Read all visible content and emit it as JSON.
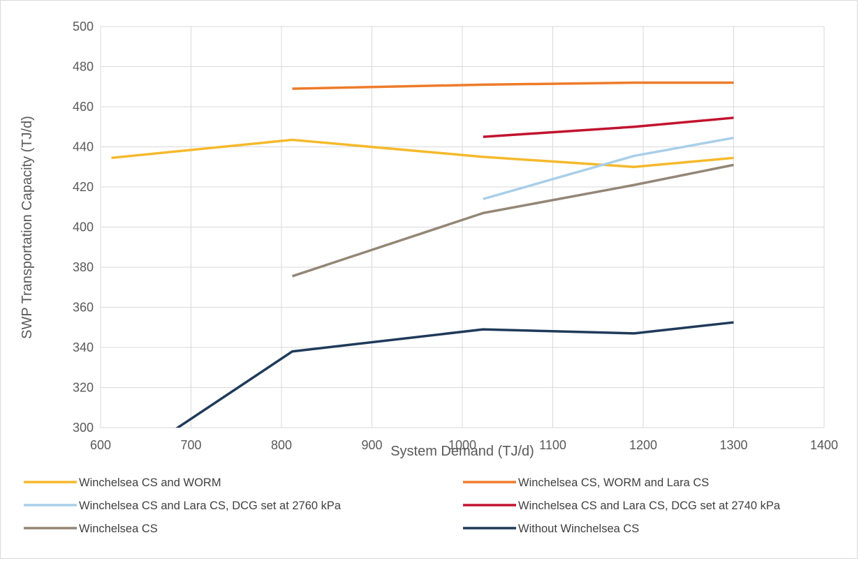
{
  "chart_data": {
    "type": "line",
    "title": "",
    "xlabel": "System Demand (TJ/d)",
    "ylabel": "SWP Transportation Capacity (TJ/d)",
    "xlim": [
      600,
      1400
    ],
    "ylim": [
      300,
      500
    ],
    "xticks": [
      600,
      700,
      800,
      900,
      1000,
      1100,
      1200,
      1300,
      1400
    ],
    "yticks": [
      300,
      320,
      340,
      360,
      380,
      400,
      420,
      440,
      460,
      480,
      500
    ],
    "grid": "horizontal and vertical",
    "legend_position": "bottom",
    "series": [
      {
        "name": "Winchelsea CS and WORM",
        "color": "#f5b92b",
        "x": [
          612,
          812,
          1023,
          1190,
          1300
        ],
        "y": [
          434.5,
          443.5,
          435,
          430,
          434.5
        ]
      },
      {
        "name": "Winchelsea CS, WORM and Lara CS",
        "color": "#ee7b29",
        "x": [
          812,
          1023,
          1190,
          1300
        ],
        "y": [
          469,
          471,
          472,
          472
        ]
      },
      {
        "name": "Winchelsea CS and Lara CS, DCG set at 2760 kPa",
        "color": "#a8cfe9",
        "x": [
          1023,
          1190,
          1300
        ],
        "y": [
          414,
          435.5,
          444.5
        ]
      },
      {
        "name": "Winchelsea CS and Lara CS, DCG set at 2740 kPa",
        "color": "#c2132e",
        "x": [
          1023,
          1190,
          1300
        ],
        "y": [
          445,
          450,
          454.5
        ]
      },
      {
        "name": "Winchelsea CS",
        "color": "#948676",
        "x": [
          812,
          1023,
          1190,
          1300
        ],
        "y": [
          375.5,
          407,
          421,
          431
        ]
      },
      {
        "name": "Without Winchelsea CS",
        "color": "#1f3a5a",
        "x": [
          612,
          812,
          1023,
          1190,
          1300
        ],
        "y": [
          278,
          338,
          349,
          347,
          352.5
        ]
      }
    ]
  }
}
